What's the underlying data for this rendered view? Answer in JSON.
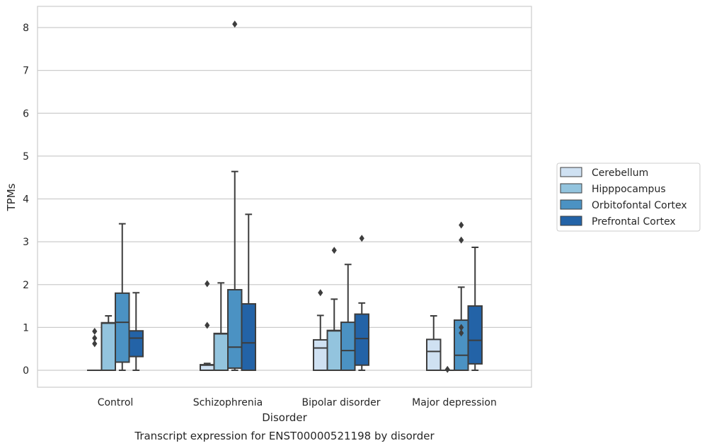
{
  "chart_data": {
    "type": "box",
    "caption": "Transcript expression for ENST00000521198 by disorder",
    "xlabel": "Disorder",
    "ylabel": "TPMs",
    "ylim": [
      -0.4,
      8.5
    ],
    "yticks": [
      0,
      1,
      2,
      3,
      4,
      5,
      6,
      7,
      8
    ],
    "grid": true,
    "legend_position": "right",
    "categories": [
      "Control",
      "Schizophrenia",
      "Bipolar disorder",
      "Major depression"
    ],
    "series": [
      {
        "name": "Cerebellum",
        "color": "#cfe1f2",
        "boxes": [
          {
            "min": 0,
            "q1": 0,
            "median": 0,
            "q3": 0,
            "max": 0,
            "outliers": [
              0.62,
              0.75,
              0.91
            ]
          },
          {
            "min": 0,
            "q1": 0,
            "median": 0.12,
            "q3": 0.13,
            "max": 0.16,
            "outliers": [
              1.05,
              2.02
            ]
          },
          {
            "min": 0,
            "q1": 0,
            "median": 0.52,
            "q3": 0.71,
            "max": 1.28,
            "outliers": [
              1.81
            ]
          },
          {
            "min": 0,
            "q1": 0,
            "median": 0.44,
            "q3": 0.72,
            "max": 1.27,
            "outliers": []
          }
        ]
      },
      {
        "name": "Hipppocampus",
        "color": "#93c4de",
        "boxes": [
          {
            "min": 0,
            "q1": 0,
            "median": 1.1,
            "q3": 1.11,
            "max": 1.27,
            "outliers": []
          },
          {
            "min": 0,
            "q1": 0,
            "median": 0.85,
            "q3": 0.86,
            "max": 2.04,
            "outliers": []
          },
          {
            "min": 0,
            "q1": 0,
            "median": 0.92,
            "q3": 0.93,
            "max": 1.66,
            "outliers": [
              2.8
            ]
          },
          {
            "min": 0,
            "q1": 0,
            "median": 0,
            "q3": 0,
            "max": 0,
            "outliers": [
              0.02
            ]
          }
        ]
      },
      {
        "name": "Orbitofontal Cortex",
        "color": "#4b92c3",
        "boxes": [
          {
            "min": 0,
            "q1": 0.19,
            "median": 1.12,
            "q3": 1.8,
            "max": 3.42,
            "outliers": []
          },
          {
            "min": 0,
            "q1": 0.05,
            "median": 0.54,
            "q3": 1.88,
            "max": 4.64,
            "outliers": [
              8.08
            ]
          },
          {
            "min": 0,
            "q1": 0,
            "median": 0.46,
            "q3": 1.12,
            "max": 2.47,
            "outliers": []
          },
          {
            "min": 0,
            "q1": 0,
            "median": 0.35,
            "q3": 1.17,
            "max": 1.94,
            "outliers": [
              0.87,
              1.0,
              3.04,
              3.39
            ]
          }
        ]
      },
      {
        "name": "Prefrontal Cortex",
        "color": "#2363a7",
        "boxes": [
          {
            "min": 0,
            "q1": 0.32,
            "median": 0.75,
            "q3": 0.92,
            "max": 1.81,
            "outliers": []
          },
          {
            "min": 0,
            "q1": 0,
            "median": 0.64,
            "q3": 1.55,
            "max": 3.64,
            "outliers": []
          },
          {
            "min": 0,
            "q1": 0.12,
            "median": 0.74,
            "q3": 1.31,
            "max": 1.57,
            "outliers": [
              3.08
            ]
          },
          {
            "min": 0,
            "q1": 0.15,
            "median": 0.7,
            "q3": 1.5,
            "max": 2.87,
            "outliers": []
          }
        ]
      }
    ]
  }
}
